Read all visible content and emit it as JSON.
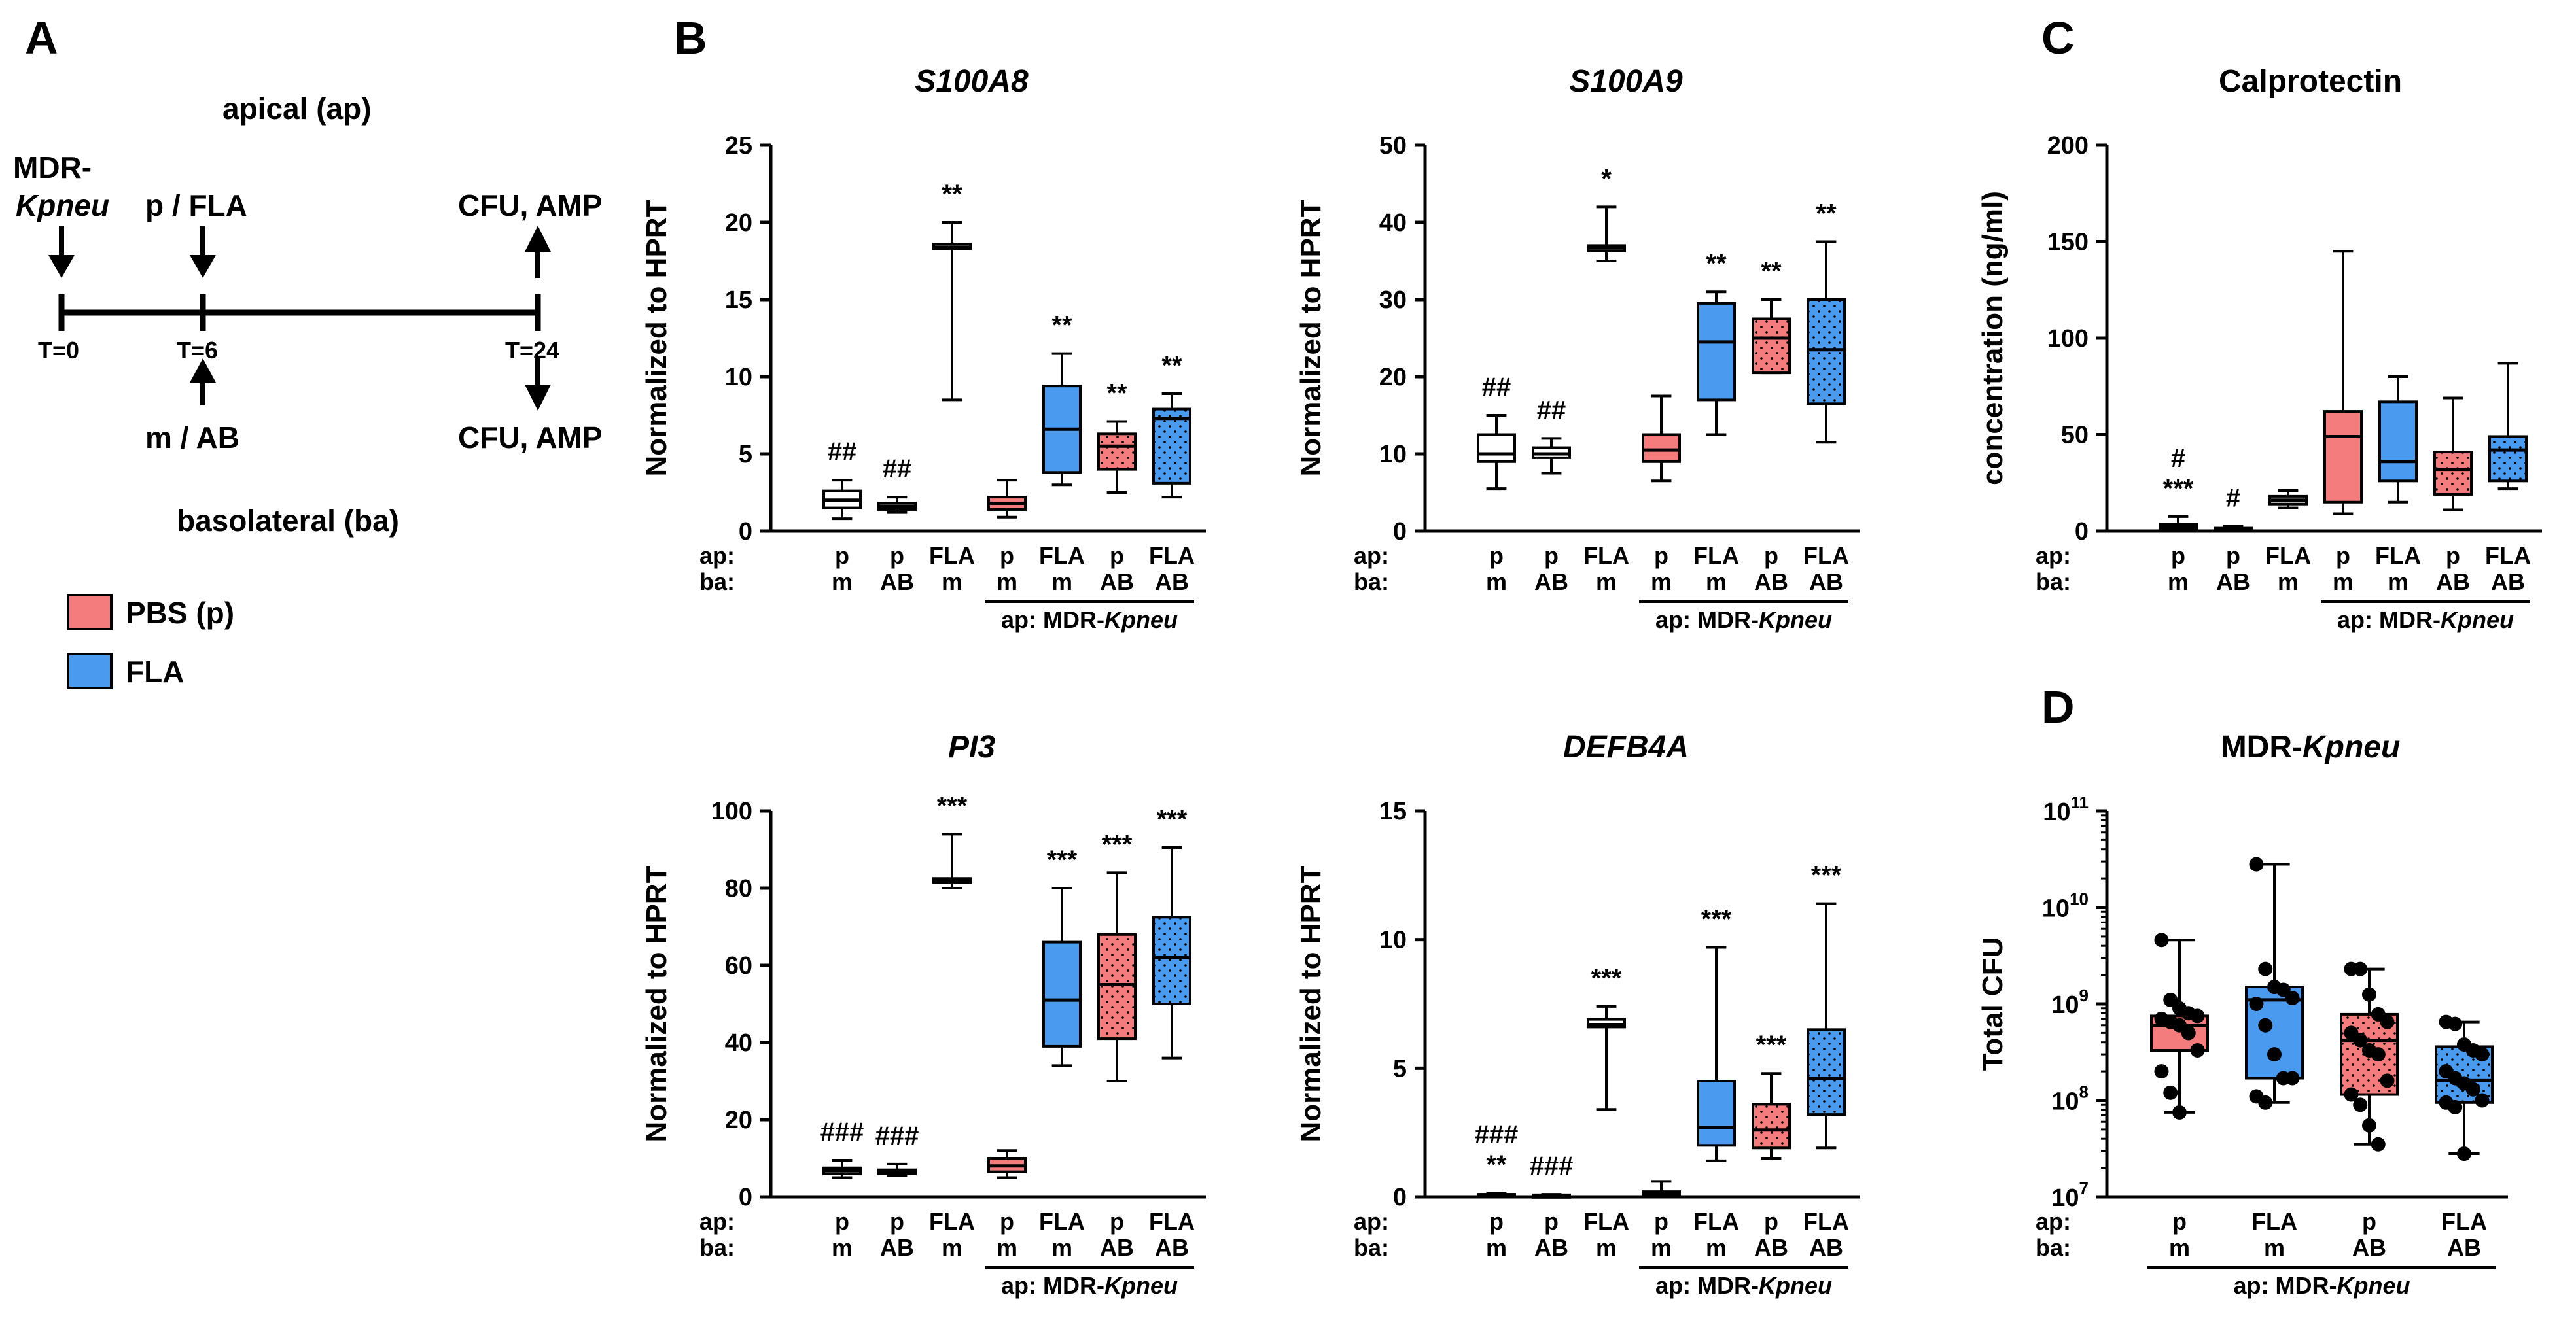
{
  "panels": {
    "A": {
      "label": "A",
      "apical": "apical (ap)",
      "basolateral": "basolateral (ba)",
      "mdr_line1": "MDR-",
      "mdr_line2": "Kpneu",
      "top_mid": "p / FLA",
      "top_right": "CFU, AMP",
      "bottom_mid": "m / AB",
      "bottom_right": "CFU, AMP",
      "t0": "T=0",
      "t6": "T=6",
      "t24": "T=24",
      "legend": [
        {
          "label": "PBS (p)",
          "color": "#f47c7c"
        },
        {
          "label": "FLA",
          "color": "#4a9af0"
        }
      ]
    },
    "B": {
      "label": "B"
    },
    "C": {
      "label": "C"
    },
    "D": {
      "label": "D"
    }
  },
  "row_labels": {
    "ap": "ap:",
    "ba": "ba:"
  },
  "group_label": {
    "prefix": "ap: MDR-",
    "italic": "Kpneu"
  },
  "colors": {
    "white": "#ffffff",
    "red": "#f47c7c",
    "blue": "#4a9af0",
    "black": "#000000"
  },
  "chart_data": [
    {
      "id": "s100a8",
      "type": "box",
      "title": "S100A8",
      "title_italic": true,
      "ylabel": "Normalized to HPRT",
      "ylim": [
        0,
        25
      ],
      "yticks": [
        0,
        5,
        10,
        15,
        20,
        25
      ],
      "yscale": "linear",
      "categories": [
        {
          "ap": "p",
          "ba": "m",
          "color": "white",
          "dots": false,
          "min": 0.8,
          "q1": 1.5,
          "median": 2.0,
          "q3": 2.6,
          "max": 3.3,
          "sig": [
            "##"
          ]
        },
        {
          "ap": "p",
          "ba": "AB",
          "color": "white",
          "dots": false,
          "min": 1.2,
          "q1": 1.4,
          "median": 1.6,
          "q3": 1.8,
          "max": 2.2,
          "sig": [
            "##"
          ]
        },
        {
          "ap": "FLA",
          "ba": "m",
          "color": "white",
          "dots": false,
          "min": 8.5,
          "q1": 18.3,
          "median": 18.4,
          "q3": 18.6,
          "max": 20.0,
          "sig": [
            "**"
          ]
        },
        {
          "ap": "p",
          "ba": "m",
          "color": "red",
          "dots": false,
          "min": 0.9,
          "q1": 1.4,
          "median": 1.8,
          "q3": 2.2,
          "max": 3.3,
          "sig": []
        },
        {
          "ap": "FLA",
          "ba": "m",
          "color": "blue",
          "dots": false,
          "min": 3.0,
          "q1": 3.8,
          "median": 6.6,
          "q3": 9.4,
          "max": 11.5,
          "sig": [
            "**"
          ]
        },
        {
          "ap": "p",
          "ba": "AB",
          "color": "red",
          "dots": true,
          "min": 2.5,
          "q1": 4.0,
          "median": 5.5,
          "q3": 6.3,
          "max": 7.1,
          "sig": [
            "**"
          ]
        },
        {
          "ap": "FLA",
          "ba": "AB",
          "color": "blue",
          "dots": true,
          "min": 2.2,
          "q1": 3.1,
          "median": 7.3,
          "q3": 7.9,
          "max": 8.9,
          "sig": [
            "**"
          ]
        }
      ],
      "group_line": [
        3,
        6
      ]
    },
    {
      "id": "s100a9",
      "type": "box",
      "title": "S100A9",
      "title_italic": true,
      "ylabel": "Normalized to HPRT",
      "ylim": [
        0,
        50
      ],
      "yticks": [
        0,
        10,
        20,
        30,
        40,
        50
      ],
      "yscale": "linear",
      "categories": [
        {
          "ap": "p",
          "ba": "m",
          "color": "white",
          "dots": false,
          "min": 5.5,
          "q1": 9.0,
          "median": 10.0,
          "q3": 12.5,
          "max": 15.0,
          "sig": [
            "##"
          ]
        },
        {
          "ap": "p",
          "ba": "AB",
          "color": "white",
          "dots": false,
          "min": 7.5,
          "q1": 9.5,
          "median": 10.0,
          "q3": 10.8,
          "max": 12.0,
          "sig": [
            "##"
          ]
        },
        {
          "ap": "FLA",
          "ba": "m",
          "color": "white",
          "dots": false,
          "min": 35.0,
          "q1": 36.3,
          "median": 36.7,
          "q3": 37.0,
          "max": 42.0,
          "sig": [
            "*"
          ]
        },
        {
          "ap": "p",
          "ba": "m",
          "color": "red",
          "dots": false,
          "min": 6.5,
          "q1": 9.0,
          "median": 10.5,
          "q3": 12.5,
          "max": 17.5,
          "sig": []
        },
        {
          "ap": "FLA",
          "ba": "m",
          "color": "blue",
          "dots": false,
          "min": 12.5,
          "q1": 17.0,
          "median": 24.5,
          "q3": 29.5,
          "max": 31.0,
          "sig": [
            "**"
          ]
        },
        {
          "ap": "p",
          "ba": "AB",
          "color": "red",
          "dots": true,
          "min": 20.5,
          "q1": 20.5,
          "median": 25.0,
          "q3": 27.5,
          "max": 30.0,
          "sig": [
            "**"
          ]
        },
        {
          "ap": "FLA",
          "ba": "AB",
          "color": "blue",
          "dots": true,
          "min": 11.5,
          "q1": 16.5,
          "median": 23.5,
          "q3": 30.0,
          "max": 37.5,
          "sig": [
            "**"
          ]
        }
      ],
      "group_line": [
        3,
        6
      ]
    },
    {
      "id": "calprotectin",
      "type": "box",
      "title": "Calprotectin",
      "title_italic": false,
      "ylabel": "concentration (ng/ml)",
      "ylim": [
        0,
        200
      ],
      "yticks": [
        0,
        50,
        100,
        150,
        200
      ],
      "yscale": "linear",
      "categories": [
        {
          "ap": "p",
          "ba": "m",
          "color": "white",
          "dots": false,
          "min": 0.5,
          "q1": 1.5,
          "median": 2.5,
          "q3": 3.5,
          "max": 7.5,
          "sig": [
            "#",
            "***"
          ]
        },
        {
          "ap": "p",
          "ba": "AB",
          "color": "white",
          "dots": false,
          "min": 0.5,
          "q1": 0.8,
          "median": 1.0,
          "q3": 1.5,
          "max": 2.5,
          "sig": [
            "#"
          ]
        },
        {
          "ap": "FLA",
          "ba": "m",
          "color": "white",
          "dots": false,
          "min": 12.0,
          "q1": 14.0,
          "median": 16.0,
          "q3": 18.0,
          "max": 21.0,
          "sig": []
        },
        {
          "ap": "p",
          "ba": "m",
          "color": "red",
          "dots": false,
          "min": 9.0,
          "q1": 15.0,
          "median": 49.0,
          "q3": 62.0,
          "max": 145.0,
          "sig": []
        },
        {
          "ap": "FLA",
          "ba": "m",
          "color": "blue",
          "dots": false,
          "min": 15.0,
          "q1": 26.0,
          "median": 36.0,
          "q3": 67.0,
          "max": 80.0,
          "sig": []
        },
        {
          "ap": "p",
          "ba": "AB",
          "color": "red",
          "dots": true,
          "min": 11.0,
          "q1": 19.0,
          "median": 32.0,
          "q3": 41.0,
          "max": 69.0,
          "sig": []
        },
        {
          "ap": "FLA",
          "ba": "AB",
          "color": "blue",
          "dots": true,
          "min": 22.0,
          "q1": 26.0,
          "median": 42.0,
          "q3": 49.0,
          "max": 87.0,
          "sig": []
        }
      ],
      "group_line": [
        3,
        6
      ]
    },
    {
      "id": "pi3",
      "type": "box",
      "title": "PI3",
      "title_italic": true,
      "ylabel": "Normalized to HPRT",
      "ylim": [
        0,
        100
      ],
      "yticks": [
        0,
        20,
        40,
        60,
        80,
        100
      ],
      "yscale": "linear",
      "categories": [
        {
          "ap": "p",
          "ba": "m",
          "color": "white",
          "dots": false,
          "min": 5.0,
          "q1": 6.0,
          "median": 6.8,
          "q3": 7.5,
          "max": 9.5,
          "sig": [
            "###"
          ]
        },
        {
          "ap": "p",
          "ba": "AB",
          "color": "white",
          "dots": false,
          "min": 5.5,
          "q1": 6.0,
          "median": 6.5,
          "q3": 7.0,
          "max": 8.5,
          "sig": [
            "###"
          ]
        },
        {
          "ap": "FLA",
          "ba": "m",
          "color": "white",
          "dots": false,
          "min": 80.0,
          "q1": 81.5,
          "median": 82.0,
          "q3": 82.5,
          "max": 94.0,
          "sig": [
            "***"
          ]
        },
        {
          "ap": "p",
          "ba": "m",
          "color": "red",
          "dots": false,
          "min": 5.0,
          "q1": 6.5,
          "median": 8.0,
          "q3": 10.0,
          "max": 12.0,
          "sig": []
        },
        {
          "ap": "FLA",
          "ba": "m",
          "color": "blue",
          "dots": false,
          "min": 34.0,
          "q1": 39.0,
          "median": 51.0,
          "q3": 66.0,
          "max": 80.0,
          "sig": [
            "***"
          ]
        },
        {
          "ap": "p",
          "ba": "AB",
          "color": "red",
          "dots": true,
          "min": 30.0,
          "q1": 41.0,
          "median": 55.0,
          "q3": 68.0,
          "max": 84.0,
          "sig": [
            "***"
          ]
        },
        {
          "ap": "FLA",
          "ba": "AB",
          "color": "blue",
          "dots": true,
          "min": 36.0,
          "q1": 50.0,
          "median": 62.0,
          "q3": 72.5,
          "max": 90.5,
          "sig": [
            "***"
          ]
        }
      ],
      "group_line": [
        3,
        6
      ]
    },
    {
      "id": "defb4a",
      "type": "box",
      "title": "DEFB4A",
      "title_italic": true,
      "ylabel": "Normalized to HPRT",
      "ylim": [
        0,
        15
      ],
      "yticks": [
        0,
        5,
        10,
        15
      ],
      "yscale": "linear",
      "categories": [
        {
          "ap": "p",
          "ba": "m",
          "color": "white",
          "dots": false,
          "min": 0.03,
          "q1": 0.05,
          "median": 0.08,
          "q3": 0.1,
          "max": 0.15,
          "sig": [
            "###",
            "**"
          ]
        },
        {
          "ap": "p",
          "ba": "AB",
          "color": "white",
          "dots": false,
          "min": 0.03,
          "q1": 0.04,
          "median": 0.06,
          "q3": 0.08,
          "max": 0.1,
          "sig": [
            "###"
          ]
        },
        {
          "ap": "FLA",
          "ba": "m",
          "color": "white",
          "dots": false,
          "min": 3.4,
          "q1": 6.6,
          "median": 6.7,
          "q3": 6.9,
          "max": 7.4,
          "sig": [
            "***"
          ]
        },
        {
          "ap": "p",
          "ba": "m",
          "color": "red",
          "dots": false,
          "min": 0.02,
          "q1": 0.05,
          "median": 0.1,
          "q3": 0.2,
          "max": 0.6,
          "sig": []
        },
        {
          "ap": "FLA",
          "ba": "m",
          "color": "blue",
          "dots": false,
          "min": 1.4,
          "q1": 2.0,
          "median": 2.7,
          "q3": 4.5,
          "max": 9.7,
          "sig": [
            "***"
          ]
        },
        {
          "ap": "p",
          "ba": "AB",
          "color": "red",
          "dots": true,
          "min": 1.5,
          "q1": 1.9,
          "median": 2.6,
          "q3": 3.6,
          "max": 4.8,
          "sig": [
            "***"
          ]
        },
        {
          "ap": "FLA",
          "ba": "AB",
          "color": "blue",
          "dots": true,
          "min": 1.9,
          "q1": 3.2,
          "median": 4.6,
          "q3": 6.5,
          "max": 11.4,
          "sig": [
            "***"
          ]
        }
      ],
      "group_line": [
        3,
        6
      ]
    },
    {
      "id": "mdr_kpneu",
      "type": "box_scatter",
      "title": "MDR-",
      "title_italic_suffix": "Kpneu",
      "ylabel": "Total CFU",
      "yscale": "log",
      "ylim": [
        10000000,
        100000000000
      ],
      "yticks": [
        {
          "base": "10",
          "exp": "7"
        },
        {
          "base": "10",
          "exp": "8"
        },
        {
          "base": "10",
          "exp": "9"
        },
        {
          "base": "10",
          "exp": "10"
        },
        {
          "base": "10",
          "exp": "11"
        }
      ],
      "categories": [
        {
          "ap": "p",
          "ba": "m",
          "color": "red",
          "dots": false,
          "min": 75000000,
          "q1": 330000000,
          "median": 600000000,
          "q3": 750000000,
          "max": 4600000000,
          "points": [
            4600000000,
            1100000000,
            900000000,
            800000000,
            750000000,
            700000000,
            650000000,
            600000000,
            500000000,
            330000000,
            200000000,
            120000000,
            75000000
          ]
        },
        {
          "ap": "FLA",
          "ba": "m",
          "color": "blue",
          "dots": false,
          "min": 95000000,
          "q1": 170000000,
          "median": 1100000000,
          "q3": 1500000000,
          "max": 28000000000,
          "points": [
            28000000000,
            2300000000,
            1500000000,
            1400000000,
            1150000000,
            1000000000,
            600000000,
            300000000,
            170000000,
            170000000,
            110000000,
            95000000
          ]
        },
        {
          "ap": "p",
          "ba": "AB",
          "color": "red",
          "dots": true,
          "min": 35000000,
          "q1": 115000000,
          "median": 420000000,
          "q3": 780000000,
          "max": 2300000000,
          "points": [
            2300000000,
            2300000000,
            1250000000,
            780000000,
            650000000,
            500000000,
            420000000,
            330000000,
            300000000,
            160000000,
            115000000,
            90000000,
            55000000,
            35000000
          ]
        },
        {
          "ap": "FLA",
          "ba": "AB",
          "color": "blue",
          "dots": true,
          "min": 28000000,
          "q1": 95000000,
          "median": 160000000,
          "q3": 360000000,
          "max": 650000000,
          "points": [
            650000000,
            620000000,
            380000000,
            330000000,
            300000000,
            200000000,
            170000000,
            150000000,
            130000000,
            100000000,
            95000000,
            85000000,
            28000000
          ]
        }
      ],
      "group_line": [
        0,
        3
      ]
    }
  ]
}
